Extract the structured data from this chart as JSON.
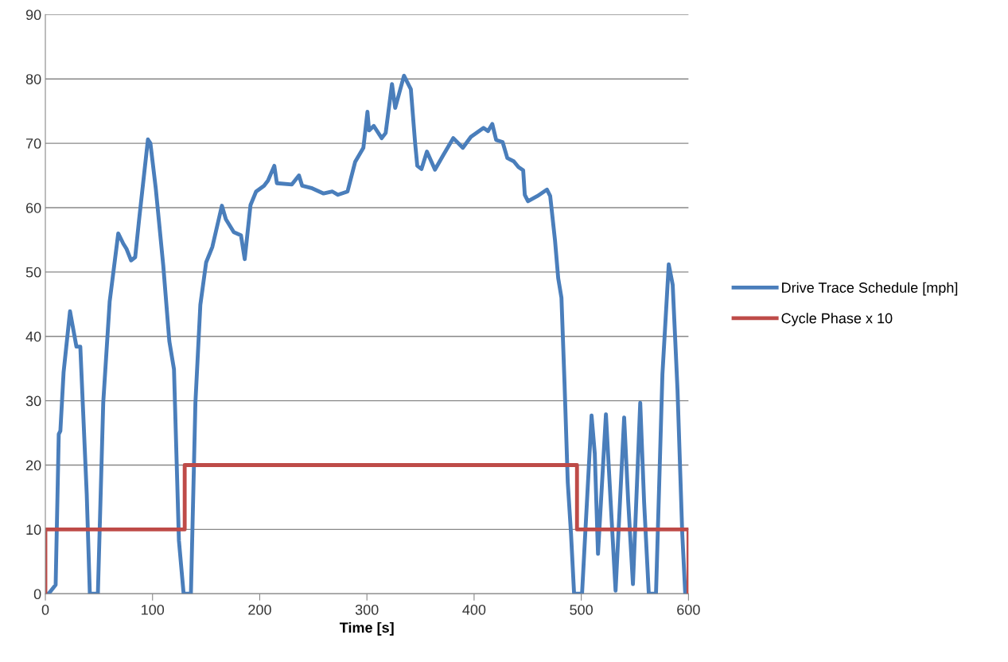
{
  "chart_data": {
    "type": "line",
    "xlabel": "Time [s]",
    "xlim": [
      0,
      600
    ],
    "xticks": [
      0,
      100,
      200,
      300,
      400,
      500,
      600
    ],
    "ylim": [
      0,
      90
    ],
    "yticks": [
      0,
      10,
      20,
      30,
      40,
      50,
      60,
      70,
      80,
      90
    ],
    "grid": "y",
    "legend": "right",
    "marker": "none",
    "line_style": "solid",
    "series": [
      {
        "name": "Drive Trace Schedule [mph]",
        "color": "#4a7ebb",
        "x": [
          0,
          3,
          9.6,
          12.5,
          14,
          17,
          23,
          29,
          32.6,
          38.6,
          41.5,
          49,
          54,
          60,
          68,
          72.7,
          75.7,
          80,
          83.8,
          87.5,
          95.7,
          98,
          103,
          110,
          115.7,
          120,
          124.6,
          129,
          135.8,
          140,
          144.6,
          150,
          155.8,
          164.7,
          168.4,
          175.8,
          182.5,
          186,
          191.4,
          196.6,
          204,
          207.7,
          213.6,
          216,
          230,
          236.6,
          239.6,
          249,
          259.6,
          267.8,
          273,
          281.9,
          289,
          296.7,
          300.5,
          302,
          306.4,
          313.8,
          317.5,
          323.4,
          326.4,
          334.6,
          341,
          345,
          347,
          350.9,
          356,
          363.5,
          371,
          380.6,
          389.5,
          397,
          408.8,
          413,
          417,
          420.6,
          426.6,
          431,
          437,
          441.4,
          445.8,
          447.3,
          450.3,
          459,
          468,
          471,
          475.5,
          478.5,
          481.5,
          484.4,
          487.4,
          490.4,
          493.3,
          500.7,
          509.6,
          512.6,
          515.6,
          523,
          527.4,
          532,
          540,
          543.8,
          548.2,
          555,
          558.6,
          563,
          569.7,
          575.7,
          581.6,
          585.3,
          589.8,
          594.2,
          597
        ],
        "values": [
          0,
          0,
          1.4,
          24.8,
          25.3,
          34.4,
          43.9,
          38.4,
          38.4,
          15.5,
          0,
          0,
          29.7,
          45.4,
          56,
          54.4,
          53.6,
          51.8,
          52.3,
          58.2,
          70.6,
          70,
          63,
          51,
          39.2,
          34.9,
          8.3,
          0,
          0,
          29.7,
          44.9,
          51.5,
          53.9,
          60.3,
          58.2,
          56.2,
          55.7,
          52,
          60.4,
          62.5,
          63.4,
          64.2,
          66.5,
          63.8,
          63.6,
          65,
          63.4,
          63,
          62.2,
          62.5,
          62,
          62.5,
          67.1,
          69.3,
          74.9,
          72,
          72.7,
          70.8,
          71.6,
          79.2,
          75.5,
          80.5,
          78.4,
          70,
          66.5,
          66,
          68.7,
          65.9,
          68.1,
          70.8,
          69.3,
          71,
          72.4,
          71.9,
          73,
          70.5,
          70.2,
          67.7,
          67.2,
          66.3,
          65.8,
          62,
          61,
          61.8,
          62.8,
          61.8,
          54.9,
          49,
          46,
          32.6,
          17.3,
          9.4,
          0,
          0,
          27.7,
          21.8,
          6.2,
          27.9,
          14.3,
          0.5,
          27.4,
          14.3,
          1.5,
          29.7,
          14.3,
          0,
          0,
          34.1,
          51.2,
          48,
          31.6,
          9.4,
          0
        ]
      },
      {
        "name": "Cycle Phase x 10",
        "color": "#be4b48",
        "x": [
          0,
          0,
          130,
          130,
          496,
          496,
          600,
          600
        ],
        "values": [
          0,
          10,
          10,
          20,
          20,
          10,
          10,
          0
        ]
      }
    ]
  }
}
